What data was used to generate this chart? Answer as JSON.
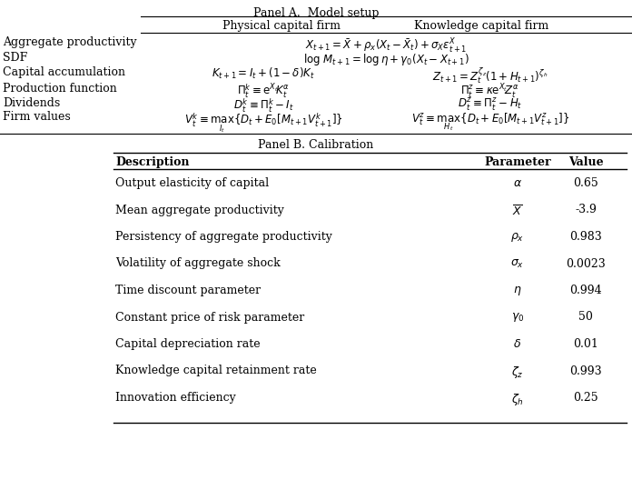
{
  "panel_a_title": "Panel A.  Model setup",
  "panel_b_title": "Panel B. Calibration",
  "panel_a_headers": [
    "Physical capital firm",
    "Knowledge capital firm"
  ],
  "panel_a_rows": [
    [
      "Aggregate productivity",
      "$X_{t+1} = \\bar{X} + \\rho_x(X_t - \\bar{X}_t) + \\sigma_X \\epsilon_{t+1}^X$",
      ""
    ],
    [
      "SDF",
      "$\\log\\, M_{t+1} = \\log\\eta + \\gamma_0(X_t - X_{t+1})$",
      ""
    ],
    [
      "Capital accumulation",
      "$K_{t+1} = I_t + (1-\\delta)K_t$",
      "$Z_{t+1} = Z_t^{\\zeta_z}(1+H_{t+1})^{\\zeta_h}$"
    ],
    [
      "Production function",
      "$\\Pi_t^k \\equiv \\mathrm{e}^{X_t}\\!K_t^{\\alpha}$",
      "$\\Pi_t^z \\equiv \\kappa\\mathrm{e}^{X_t}\\!Z_t^{\\alpha}$"
    ],
    [
      "Dividends",
      "$D_t^k \\equiv \\Pi_t^k - I_t$",
      "$D_t^z \\equiv \\Pi_t^z - H_t$"
    ],
    [
      "Firm values",
      "$V_t^k \\equiv \\underset{I_t}{\\max}\\{D_t + E_0[M_{t+1}V_{t+1}^k]\\}$",
      "$V_t^z \\equiv \\underset{H_t}{\\max}\\{D_t + E_0[M_{t+1}V_{t+1}^z]\\}$"
    ]
  ],
  "panel_b_headers": [
    "Description",
    "Parameter",
    "Value"
  ],
  "panel_b_rows": [
    [
      "Output elasticity of capital",
      "$\\alpha$",
      "0.65"
    ],
    [
      "Mean aggregate productivity",
      "$\\overline{X}$",
      "-3.9"
    ],
    [
      "Persistency of aggregate productivity",
      "$\\rho_x$",
      "0.983"
    ],
    [
      "Volatility of aggregate shock",
      "$\\sigma_x$",
      "0.0023"
    ],
    [
      "Time discount parameter",
      "$\\eta$",
      "0.994"
    ],
    [
      "Constant price of risk parameter",
      "$\\gamma_0$",
      "50"
    ],
    [
      "Capital depreciation rate",
      "$\\delta$",
      "0.01"
    ],
    [
      "Knowledge capital retainment rate",
      "$\\zeta_z$",
      "0.993"
    ],
    [
      "Innovation efficiency",
      "$\\zeta_h$",
      "0.25"
    ]
  ],
  "bg_color": "#ffffff",
  "text_color": "#000000",
  "math_fontsize": 9,
  "label_fontsize": 9,
  "header_fontsize": 9,
  "body_fontsize": 9
}
